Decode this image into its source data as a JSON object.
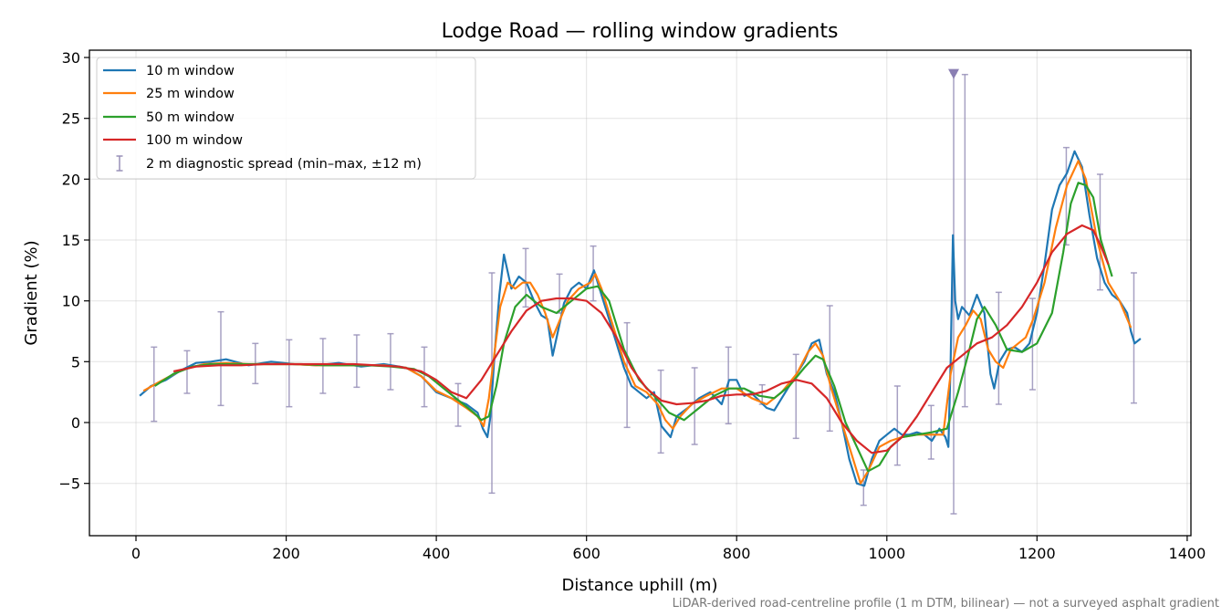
{
  "chart_data": {
    "type": "line",
    "title": "Lodge Road — rolling window gradients",
    "xlabel": "Distance uphill (m)",
    "ylabel": "Gradient (%)",
    "xlim": [
      -62,
      1405
    ],
    "ylim": [
      -9.3,
      30.6
    ],
    "xticks": [
      0,
      200,
      400,
      600,
      800,
      1000,
      1200,
      1400
    ],
    "yticks": [
      -5,
      0,
      5,
      10,
      15,
      20,
      25,
      30
    ],
    "grid": true,
    "legend_position": "top-left",
    "footnote": "LiDAR-derived road-centreline profile (1 m DTM, bilinear) — not a surveyed asphalt gradient",
    "series": [
      {
        "name": "10 m window",
        "color": "#1f77b4",
        "x": [
          5,
          20,
          40,
          60,
          80,
          100,
          120,
          150,
          180,
          210,
          240,
          270,
          300,
          330,
          360,
          380,
          400,
          420,
          440,
          455,
          462,
          468,
          472,
          478,
          484,
          490,
          500,
          510,
          520,
          530,
          540,
          548,
          555,
          562,
          570,
          580,
          590,
          600,
          610,
          620,
          630,
          640,
          650,
          660,
          670,
          680,
          690,
          700,
          712,
          720,
          735,
          750,
          765,
          780,
          790,
          800,
          810,
          820,
          830,
          840,
          850,
          860,
          870,
          880,
          890,
          900,
          910,
          920,
          930,
          940,
          950,
          960,
          970,
          980,
          990,
          1000,
          1010,
          1020,
          1030,
          1040,
          1050,
          1060,
          1070,
          1078,
          1082,
          1085,
          1088,
          1091,
          1095,
          1100,
          1110,
          1120,
          1130,
          1138,
          1143,
          1150,
          1160,
          1170,
          1180,
          1190,
          1200,
          1210,
          1220,
          1230,
          1240,
          1250,
          1260,
          1270,
          1280,
          1290,
          1300,
          1310,
          1320,
          1325,
          1330,
          1338
        ],
        "y": [
          2.2,
          3.0,
          3.5,
          4.3,
          4.9,
          5.0,
          5.2,
          4.7,
          5.0,
          4.8,
          4.7,
          4.9,
          4.6,
          4.8,
          4.5,
          3.8,
          2.5,
          2.0,
          1.5,
          0.8,
          -0.5,
          -1.2,
          0.5,
          6.0,
          10.5,
          13.8,
          11.0,
          12.0,
          11.5,
          10.0,
          8.8,
          8.5,
          5.5,
          7.5,
          9.8,
          11.0,
          11.5,
          11.0,
          12.5,
          10.5,
          8.5,
          6.5,
          4.5,
          3.0,
          2.5,
          2.0,
          2.5,
          -0.3,
          -1.2,
          0.5,
          1.2,
          2.0,
          2.5,
          1.5,
          3.5,
          3.5,
          2.2,
          2.4,
          1.8,
          1.2,
          1.0,
          2.0,
          3.0,
          4.0,
          5.0,
          6.5,
          6.8,
          4.0,
          2.5,
          0.0,
          -3.0,
          -5.0,
          -5.2,
          -3.0,
          -1.5,
          -1.0,
          -0.5,
          -1.0,
          -1.0,
          -0.8,
          -1.0,
          -1.5,
          -0.5,
          -1.2,
          -2.0,
          5.0,
          15.4,
          10.0,
          8.5,
          9.5,
          8.8,
          10.5,
          9.0,
          4.0,
          2.8,
          5.0,
          6.0,
          6.2,
          5.8,
          6.5,
          9.0,
          13.0,
          17.5,
          19.5,
          20.5,
          22.3,
          21.0,
          17.0,
          13.5,
          11.5,
          10.5,
          10.0,
          9.0,
          7.5,
          6.5,
          6.9
        ]
      },
      {
        "name": "25 m window",
        "color": "#ff7f0e",
        "x": [
          10,
          30,
          60,
          90,
          120,
          150,
          180,
          210,
          240,
          270,
          300,
          330,
          360,
          380,
          400,
          420,
          440,
          455,
          463,
          470,
          478,
          485,
          495,
          505,
          515,
          525,
          535,
          545,
          555,
          565,
          575,
          590,
          605,
          612,
          620,
          635,
          650,
          665,
          680,
          695,
          705,
          715,
          725,
          740,
          760,
          780,
          800,
          820,
          840,
          860,
          880,
          895,
          905,
          915,
          925,
          940,
          955,
          965,
          975,
          990,
          1005,
          1020,
          1040,
          1060,
          1075,
          1085,
          1095,
          1105,
          1115,
          1125,
          1135,
          1145,
          1155,
          1165,
          1175,
          1185,
          1195,
          1210,
          1225,
          1240,
          1255,
          1265,
          1280,
          1295,
          1310,
          1325
        ],
        "y": [
          2.6,
          3.3,
          4.3,
          4.8,
          4.9,
          4.8,
          4.8,
          4.8,
          4.7,
          4.7,
          4.7,
          4.7,
          4.5,
          3.8,
          2.6,
          2.0,
          1.2,
          0.5,
          -0.3,
          2.0,
          6.0,
          9.5,
          11.5,
          11.0,
          11.5,
          11.5,
          10.5,
          9.0,
          7.0,
          8.5,
          10.0,
          11.0,
          11.5,
          12.2,
          11.0,
          8.0,
          5.0,
          3.0,
          2.5,
          1.5,
          0.2,
          -0.5,
          0.5,
          1.5,
          2.2,
          2.8,
          2.8,
          2.0,
          1.5,
          2.5,
          4.0,
          5.8,
          6.5,
          5.5,
          3.0,
          0.0,
          -3.0,
          -5.0,
          -4.0,
          -2.0,
          -1.5,
          -1.2,
          -1.0,
          -1.0,
          -1.0,
          4.0,
          7.0,
          8.0,
          9.2,
          8.5,
          6.0,
          5.0,
          4.5,
          6.0,
          6.5,
          7.0,
          8.5,
          11.5,
          16.0,
          19.5,
          21.5,
          20.0,
          15.0,
          11.5,
          10.0,
          7.8
        ]
      },
      {
        "name": "50 m window",
        "color": "#2ca02c",
        "x": [
          25,
          50,
          75,
          100,
          130,
          160,
          190,
          220,
          250,
          280,
          310,
          340,
          370,
          390,
          410,
          430,
          450,
          460,
          470,
          480,
          490,
          505,
          520,
          540,
          560,
          580,
          600,
          615,
          630,
          650,
          670,
          690,
          710,
          730,
          750,
          770,
          790,
          810,
          830,
          850,
          870,
          890,
          905,
          915,
          930,
          945,
          960,
          975,
          990,
          1005,
          1020,
          1040,
          1060,
          1080,
          1095,
          1110,
          1120,
          1130,
          1145,
          1160,
          1180,
          1200,
          1220,
          1235,
          1245,
          1255,
          1265,
          1275,
          1285,
          1300
        ],
        "y": [
          3.0,
          4.0,
          4.6,
          4.8,
          4.8,
          4.8,
          4.8,
          4.8,
          4.7,
          4.7,
          4.7,
          4.6,
          4.4,
          3.8,
          2.8,
          1.8,
          0.8,
          0.2,
          0.5,
          3.0,
          6.5,
          9.5,
          10.5,
          9.5,
          9.0,
          10.0,
          11.0,
          11.2,
          10.0,
          6.0,
          3.5,
          2.2,
          0.8,
          0.2,
          1.2,
          2.2,
          2.8,
          2.8,
          2.2,
          2.0,
          3.0,
          4.5,
          5.5,
          5.2,
          3.0,
          0.0,
          -2.0,
          -4.0,
          -3.5,
          -2.0,
          -1.2,
          -1.0,
          -0.8,
          -0.5,
          2.5,
          6.0,
          8.5,
          9.5,
          8.0,
          6.0,
          5.8,
          6.5,
          9.0,
          14.0,
          18.0,
          19.7,
          19.5,
          18.5,
          15.0,
          12.0
        ]
      },
      {
        "name": "100 m window",
        "color": "#d62728",
        "x": [
          50,
          80,
          110,
          140,
          170,
          200,
          230,
          260,
          290,
          320,
          350,
          380,
          400,
          420,
          440,
          460,
          480,
          500,
          520,
          540,
          560,
          580,
          600,
          620,
          640,
          660,
          680,
          700,
          720,
          740,
          760,
          780,
          800,
          820,
          840,
          860,
          880,
          900,
          920,
          940,
          960,
          980,
          1000,
          1020,
          1040,
          1060,
          1080,
          1100,
          1120,
          1140,
          1160,
          1180,
          1200,
          1220,
          1240,
          1260,
          1275,
          1285,
          1295
        ],
        "y": [
          4.2,
          4.6,
          4.7,
          4.7,
          4.8,
          4.8,
          4.8,
          4.8,
          4.8,
          4.7,
          4.6,
          4.2,
          3.5,
          2.5,
          2.0,
          3.5,
          5.5,
          7.5,
          9.2,
          10.0,
          10.2,
          10.2,
          10.0,
          9.0,
          7.0,
          4.5,
          2.8,
          1.8,
          1.5,
          1.6,
          1.8,
          2.2,
          2.3,
          2.3,
          2.6,
          3.2,
          3.5,
          3.2,
          2.0,
          0.0,
          -1.5,
          -2.5,
          -2.3,
          -1.2,
          0.5,
          2.5,
          4.5,
          5.5,
          6.5,
          7.0,
          8.0,
          9.5,
          11.5,
          14.0,
          15.5,
          16.2,
          15.8,
          14.5,
          13.0
        ]
      }
    ],
    "errorbars": {
      "name": "2 m diagnostic spread (min–max, ±12 m)",
      "color": "#9890b8",
      "points": [
        {
          "x": 24,
          "min": 0.1,
          "max": 6.2
        },
        {
          "x": 68,
          "min": 2.4,
          "max": 5.9
        },
        {
          "x": 113,
          "min": 1.4,
          "max": 9.1
        },
        {
          "x": 159,
          "min": 3.2,
          "max": 6.5
        },
        {
          "x": 204,
          "min": 1.3,
          "max": 6.8
        },
        {
          "x": 249,
          "min": 2.4,
          "max": 6.9
        },
        {
          "x": 294,
          "min": 2.9,
          "max": 7.2
        },
        {
          "x": 339,
          "min": 2.7,
          "max": 7.3
        },
        {
          "x": 384,
          "min": 1.3,
          "max": 6.2
        },
        {
          "x": 429,
          "min": -0.3,
          "max": 3.2
        },
        {
          "x": 474,
          "min": -5.8,
          "max": 12.3
        },
        {
          "x": 519,
          "min": 9.5,
          "max": 14.3
        },
        {
          "x": 564,
          "min": 9.0,
          "max": 12.2
        },
        {
          "x": 609,
          "min": 10.0,
          "max": 14.5
        },
        {
          "x": 654,
          "min": -0.4,
          "max": 8.2
        },
        {
          "x": 699,
          "min": -2.5,
          "max": 4.3
        },
        {
          "x": 744,
          "min": -1.8,
          "max": 4.5
        },
        {
          "x": 789,
          "min": -0.1,
          "max": 6.2
        },
        {
          "x": 834,
          "min": 1.5,
          "max": 3.1
        },
        {
          "x": 879,
          "min": -1.3,
          "max": 5.6
        },
        {
          "x": 924,
          "min": -0.7,
          "max": 9.6
        },
        {
          "x": 969,
          "min": -6.8,
          "max": -3.9
        },
        {
          "x": 1014,
          "min": -3.5,
          "max": 3.0
        },
        {
          "x": 1059,
          "min": -3.0,
          "max": 1.4
        },
        {
          "x": 1089,
          "min": -7.5,
          "max": 28.7
        },
        {
          "x": 1104,
          "min": 1.3,
          "max": 28.6
        },
        {
          "x": 1149,
          "min": 1.5,
          "max": 10.7
        },
        {
          "x": 1194,
          "min": 2.7,
          "max": 10.2
        },
        {
          "x": 1239,
          "min": 14.6,
          "max": 22.6
        },
        {
          "x": 1284,
          "min": 10.9,
          "max": 20.4
        },
        {
          "x": 1329,
          "min": 1.6,
          "max": 12.3
        }
      ],
      "marker": {
        "x": 1089,
        "y": 28.6,
        "shape": "triangle-down"
      }
    }
  }
}
